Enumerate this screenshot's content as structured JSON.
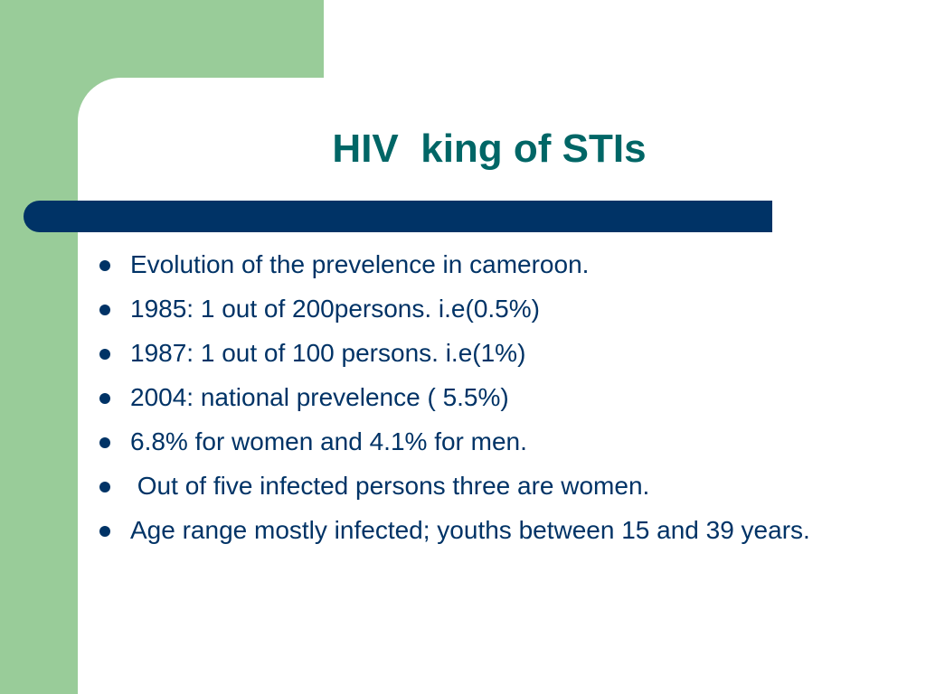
{
  "title": "HIV  king of STIs",
  "bullets": [
    "Evolution of the prevelence in cameroon.",
    "1985: 1 out of 200persons. i.e(0.5%)",
    "1987: 1 out of 100 persons. i.e(1%)",
    "2004: national prevelence ( 5.5%)",
    "6.8% for women and 4.1% for men.",
    " Out of five infected persons three are women.",
    "Age range mostly infected; youths between 15 and 39 years."
  ]
}
